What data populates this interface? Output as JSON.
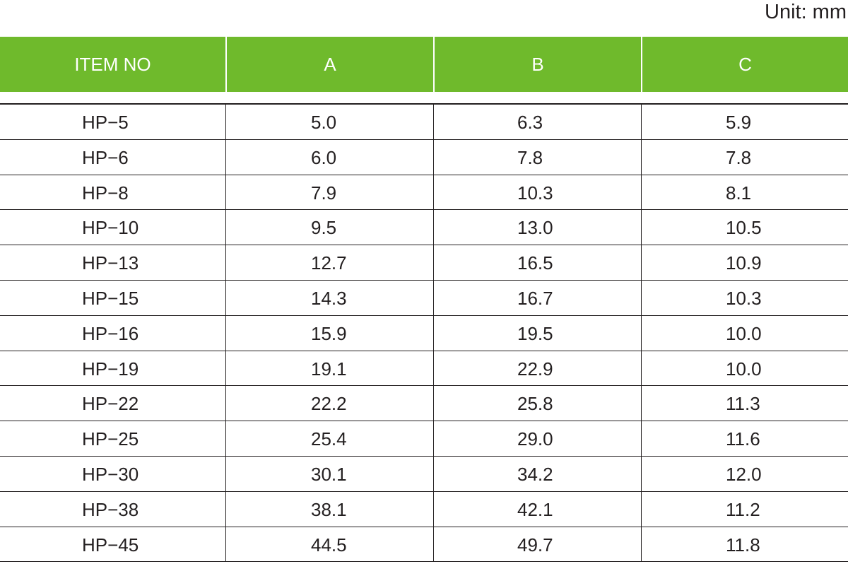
{
  "unit_label": "Unit: mm",
  "table": {
    "headers": [
      "ITEM NO",
      "A",
      "B",
      "C"
    ],
    "rows": [
      [
        "HP−5",
        "5.0",
        "6.3",
        "5.9"
      ],
      [
        "HP−6",
        "6.0",
        "7.8",
        "7.8"
      ],
      [
        "HP−8",
        "7.9",
        "10.3",
        "8.1"
      ],
      [
        "HP−10",
        "9.5",
        "13.0",
        "10.5"
      ],
      [
        "HP−13",
        "12.7",
        "16.5",
        "10.9"
      ],
      [
        "HP−15",
        "14.3",
        "16.7",
        "10.3"
      ],
      [
        "HP−16",
        "15.9",
        "19.5",
        "10.0"
      ],
      [
        "HP−19",
        "19.1",
        "22.9",
        "10.0"
      ],
      [
        "HP−22",
        "22.2",
        "25.8",
        "11.3"
      ],
      [
        "HP−25",
        "25.4",
        "29.0",
        "11.6"
      ],
      [
        "HP−30",
        "30.1",
        "34.2",
        "12.0"
      ],
      [
        "HP−38",
        "38.1",
        "42.1",
        "11.2"
      ],
      [
        "HP−45",
        "44.5",
        "49.7",
        "11.8"
      ]
    ]
  },
  "colors": {
    "header_background": "#6fba2c",
    "header_text": "#ffffff",
    "body_text": "#231f20",
    "rule": "#231f20"
  }
}
